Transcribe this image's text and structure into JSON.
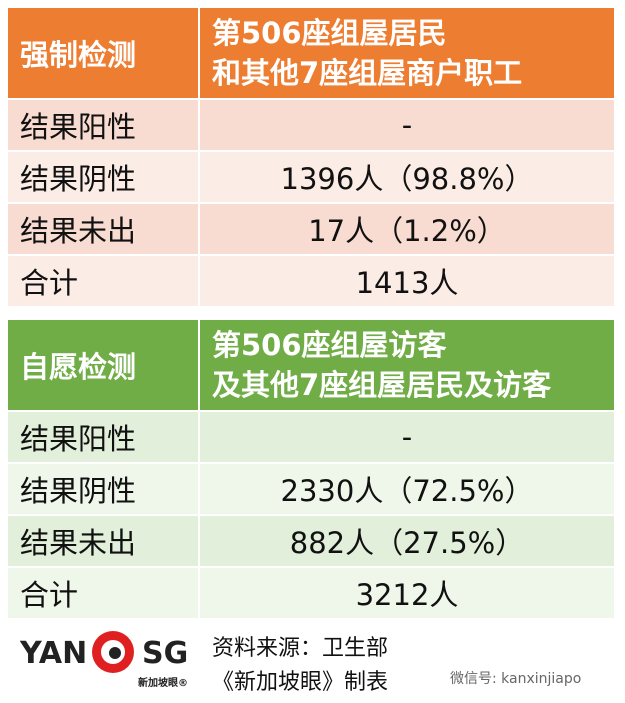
{
  "tables": [
    {
      "label": "强制检测",
      "title_lines": [
        "第506座组屋居民",
        "和其他7座组屋商户职工"
      ],
      "rows": [
        [
          "结果阳性",
          "-"
        ],
        [
          "结果阴性",
          "1396人（98.8%）"
        ],
        [
          "结果未出",
          "17人（1.2%）"
        ],
        [
          "合计",
          "1413人"
        ]
      ]
    },
    {
      "label": "自愿检测",
      "title_lines": [
        "第506座组屋访客",
        "及其他7座组屋居民及访客"
      ],
      "rows": [
        [
          "结果阳性",
          "-"
        ],
        [
          "结果阴性",
          "2330人（72.5%）"
        ],
        [
          "结果未出",
          "882人（27.5%）"
        ],
        [
          "合计",
          "3212人"
        ]
      ]
    }
  ],
  "footer": {
    "logo_left": "YAN",
    "logo_right": "SG",
    "logo_tagline": "新加坡眼®",
    "source": "资料来源：卫生部",
    "credit": "《新加坡眼》制表",
    "wechat": "微信号: kanxinjiapo"
  }
}
